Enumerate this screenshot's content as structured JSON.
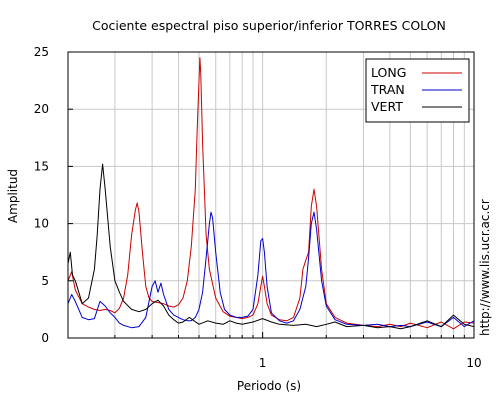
{
  "chart_data": {
    "type": "line",
    "title": "Cociente espectral piso superior/inferior  TORRES COLON",
    "xlabel": "Periodo (s)",
    "ylabel": "Amplitud",
    "xscale": "log",
    "xlim": [
      0.12,
      10
    ],
    "ylim": [
      0,
      25
    ],
    "x_tick_labels": [
      {
        "value": 1,
        "label": "1"
      },
      {
        "value": 10,
        "label": "10"
      }
    ],
    "y_ticks": [
      0,
      5,
      10,
      15,
      20,
      25
    ],
    "grid": true,
    "legend_position": "top-right",
    "watermark": "http://www.lis.ucr.ac.cr",
    "series": [
      {
        "name": "LONG",
        "color": "#cc0000",
        "points": [
          [
            0.12,
            5.0
          ],
          [
            0.125,
            5.8
          ],
          [
            0.13,
            4.2
          ],
          [
            0.14,
            3.0
          ],
          [
            0.15,
            2.7
          ],
          [
            0.16,
            2.5
          ],
          [
            0.17,
            2.4
          ],
          [
            0.18,
            2.5
          ],
          [
            0.19,
            2.4
          ],
          [
            0.2,
            2.2
          ],
          [
            0.21,
            2.6
          ],
          [
            0.22,
            3.5
          ],
          [
            0.23,
            5.5
          ],
          [
            0.24,
            9.0
          ],
          [
            0.25,
            11.2
          ],
          [
            0.255,
            11.8
          ],
          [
            0.26,
            11.0
          ],
          [
            0.27,
            7.5
          ],
          [
            0.28,
            4.5
          ],
          [
            0.29,
            3.5
          ],
          [
            0.3,
            3.2
          ],
          [
            0.32,
            3.1
          ],
          [
            0.34,
            3.0
          ],
          [
            0.36,
            2.8
          ],
          [
            0.38,
            2.7
          ],
          [
            0.4,
            2.9
          ],
          [
            0.42,
            3.5
          ],
          [
            0.44,
            5.0
          ],
          [
            0.46,
            8.0
          ],
          [
            0.48,
            13.0
          ],
          [
            0.49,
            18.0
          ],
          [
            0.5,
            22.5
          ],
          [
            0.505,
            24.5
          ],
          [
            0.51,
            23.0
          ],
          [
            0.52,
            17.0
          ],
          [
            0.54,
            9.0
          ],
          [
            0.56,
            6.0
          ],
          [
            0.6,
            3.5
          ],
          [
            0.65,
            2.3
          ],
          [
            0.7,
            1.9
          ],
          [
            0.75,
            1.8
          ],
          [
            0.8,
            1.7
          ],
          [
            0.85,
            1.8
          ],
          [
            0.9,
            2.0
          ],
          [
            0.95,
            3.0
          ],
          [
            0.98,
            4.5
          ],
          [
            1.0,
            5.4
          ],
          [
            1.02,
            4.5
          ],
          [
            1.05,
            3.0
          ],
          [
            1.1,
            2.0
          ],
          [
            1.2,
            1.6
          ],
          [
            1.3,
            1.5
          ],
          [
            1.4,
            1.8
          ],
          [
            1.5,
            3.5
          ],
          [
            1.55,
            6.0
          ],
          [
            1.6,
            6.8
          ],
          [
            1.65,
            7.5
          ],
          [
            1.7,
            11.5
          ],
          [
            1.75,
            13.0
          ],
          [
            1.8,
            11.5
          ],
          [
            1.9,
            6.0
          ],
          [
            2.0,
            3.0
          ],
          [
            2.2,
            1.8
          ],
          [
            2.5,
            1.3
          ],
          [
            3.0,
            1.1
          ],
          [
            3.5,
            1.0
          ],
          [
            4.0,
            1.2
          ],
          [
            4.5,
            1.0
          ],
          [
            5.0,
            1.3
          ],
          [
            6.0,
            0.9
          ],
          [
            7.0,
            1.4
          ],
          [
            8.0,
            0.8
          ],
          [
            9.0,
            1.4
          ],
          [
            10.0,
            1.3
          ]
        ]
      },
      {
        "name": "TRAN",
        "color": "#0000cc",
        "points": [
          [
            0.12,
            3.0
          ],
          [
            0.125,
            3.8
          ],
          [
            0.13,
            3.2
          ],
          [
            0.14,
            1.8
          ],
          [
            0.15,
            1.6
          ],
          [
            0.16,
            1.7
          ],
          [
            0.17,
            3.2
          ],
          [
            0.18,
            2.8
          ],
          [
            0.19,
            2.2
          ],
          [
            0.2,
            1.8
          ],
          [
            0.21,
            1.3
          ],
          [
            0.22,
            1.1
          ],
          [
            0.24,
            0.9
          ],
          [
            0.26,
            1.0
          ],
          [
            0.28,
            1.8
          ],
          [
            0.3,
            4.5
          ],
          [
            0.31,
            5.0
          ],
          [
            0.32,
            4.0
          ],
          [
            0.33,
            4.8
          ],
          [
            0.34,
            3.8
          ],
          [
            0.36,
            2.5
          ],
          [
            0.38,
            2.0
          ],
          [
            0.4,
            1.8
          ],
          [
            0.42,
            1.6
          ],
          [
            0.44,
            1.5
          ],
          [
            0.46,
            1.5
          ],
          [
            0.48,
            1.8
          ],
          [
            0.5,
            2.5
          ],
          [
            0.52,
            4.0
          ],
          [
            0.54,
            7.0
          ],
          [
            0.56,
            10.0
          ],
          [
            0.57,
            11.0
          ],
          [
            0.58,
            10.5
          ],
          [
            0.6,
            7.5
          ],
          [
            0.63,
            4.0
          ],
          [
            0.66,
            2.5
          ],
          [
            0.7,
            2.0
          ],
          [
            0.75,
            1.8
          ],
          [
            0.8,
            1.8
          ],
          [
            0.85,
            1.9
          ],
          [
            0.9,
            2.5
          ],
          [
            0.95,
            5.5
          ],
          [
            0.98,
            8.5
          ],
          [
            1.0,
            8.7
          ],
          [
            1.02,
            7.5
          ],
          [
            1.05,
            4.5
          ],
          [
            1.1,
            2.2
          ],
          [
            1.2,
            1.5
          ],
          [
            1.3,
            1.3
          ],
          [
            1.4,
            1.5
          ],
          [
            1.5,
            2.5
          ],
          [
            1.6,
            4.5
          ],
          [
            1.65,
            7.0
          ],
          [
            1.7,
            10.0
          ],
          [
            1.75,
            11.0
          ],
          [
            1.8,
            9.5
          ],
          [
            1.9,
            5.0
          ],
          [
            2.0,
            2.8
          ],
          [
            2.2,
            1.6
          ],
          [
            2.5,
            1.2
          ],
          [
            3.0,
            1.1
          ],
          [
            3.5,
            1.2
          ],
          [
            4.0,
            1.0
          ],
          [
            4.5,
            1.1
          ],
          [
            5.0,
            1.0
          ],
          [
            6.0,
            1.4
          ],
          [
            7.0,
            1.0
          ],
          [
            8.0,
            1.8
          ],
          [
            9.0,
            1.0
          ],
          [
            10.0,
            1.5
          ]
        ]
      },
      {
        "name": "VERT",
        "color": "#000000",
        "points": [
          [
            0.12,
            6.5
          ],
          [
            0.123,
            7.5
          ],
          [
            0.126,
            5.5
          ],
          [
            0.13,
            5.0
          ],
          [
            0.135,
            4.0
          ],
          [
            0.14,
            3.0
          ],
          [
            0.15,
            3.5
          ],
          [
            0.16,
            6.0
          ],
          [
            0.165,
            9.0
          ],
          [
            0.17,
            13.0
          ],
          [
            0.175,
            15.2
          ],
          [
            0.18,
            13.0
          ],
          [
            0.19,
            8.0
          ],
          [
            0.2,
            5.0
          ],
          [
            0.21,
            4.0
          ],
          [
            0.22,
            3.2
          ],
          [
            0.24,
            2.5
          ],
          [
            0.26,
            2.3
          ],
          [
            0.28,
            2.5
          ],
          [
            0.3,
            3.0
          ],
          [
            0.32,
            3.3
          ],
          [
            0.34,
            2.8
          ],
          [
            0.36,
            2.0
          ],
          [
            0.38,
            1.6
          ],
          [
            0.4,
            1.3
          ],
          [
            0.42,
            1.4
          ],
          [
            0.45,
            1.8
          ],
          [
            0.5,
            1.2
          ],
          [
            0.55,
            1.5
          ],
          [
            0.6,
            1.3
          ],
          [
            0.65,
            1.2
          ],
          [
            0.7,
            1.5
          ],
          [
            0.75,
            1.3
          ],
          [
            0.8,
            1.2
          ],
          [
            0.9,
            1.4
          ],
          [
            1.0,
            1.7
          ],
          [
            1.1,
            1.4
          ],
          [
            1.2,
            1.2
          ],
          [
            1.4,
            1.1
          ],
          [
            1.6,
            1.2
          ],
          [
            1.8,
            1.0
          ],
          [
            2.0,
            1.2
          ],
          [
            2.2,
            1.4
          ],
          [
            2.5,
            1.0
          ],
          [
            3.0,
            1.1
          ],
          [
            3.5,
            0.9
          ],
          [
            4.0,
            1.0
          ],
          [
            4.5,
            0.8
          ],
          [
            5.0,
            1.0
          ],
          [
            6.0,
            1.5
          ],
          [
            7.0,
            1.0
          ],
          [
            8.0,
            2.0
          ],
          [
            9.0,
            1.2
          ],
          [
            10.0,
            1.0
          ]
        ]
      }
    ]
  }
}
